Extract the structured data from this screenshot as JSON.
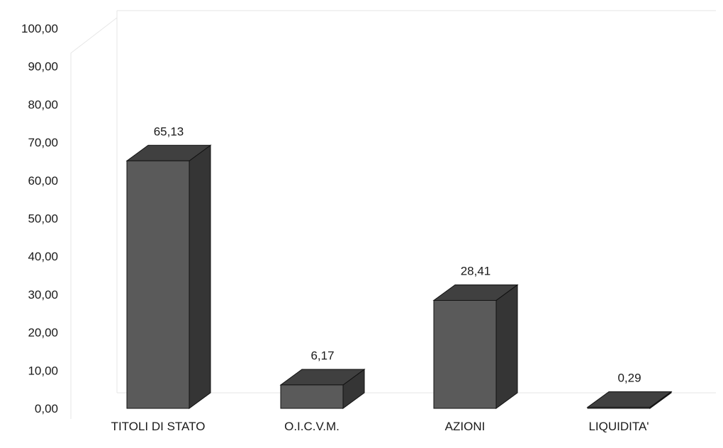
{
  "chart_data": {
    "type": "bar",
    "style": "3d",
    "categories": [
      "TITOLI DI STATO",
      "O.I.C.V.M.",
      "AZIONI",
      "LIQUIDITA'"
    ],
    "values": [
      65.13,
      6.17,
      28.41,
      0.29
    ],
    "data_labels": [
      "65,13",
      "6,17",
      "28,41",
      "0,29"
    ],
    "title": "",
    "xlabel": "",
    "ylabel": "",
    "ylim": [
      0,
      100
    ],
    "yticks": [
      0,
      10,
      20,
      30,
      40,
      50,
      60,
      70,
      80,
      90,
      100
    ],
    "ytick_labels": [
      "0,00",
      "10,00",
      "20,00",
      "30,00",
      "40,00",
      "50,00",
      "60,00",
      "70,00",
      "80,00",
      "90,00",
      "100,00"
    ],
    "grid": false,
    "legend": "none",
    "colors": {
      "bar_front": "#5a5a5a",
      "bar_top": "#404040",
      "bar_side": "#353535",
      "bar_outline": "#111111",
      "axis_wall": "#e6e6e6"
    }
  }
}
